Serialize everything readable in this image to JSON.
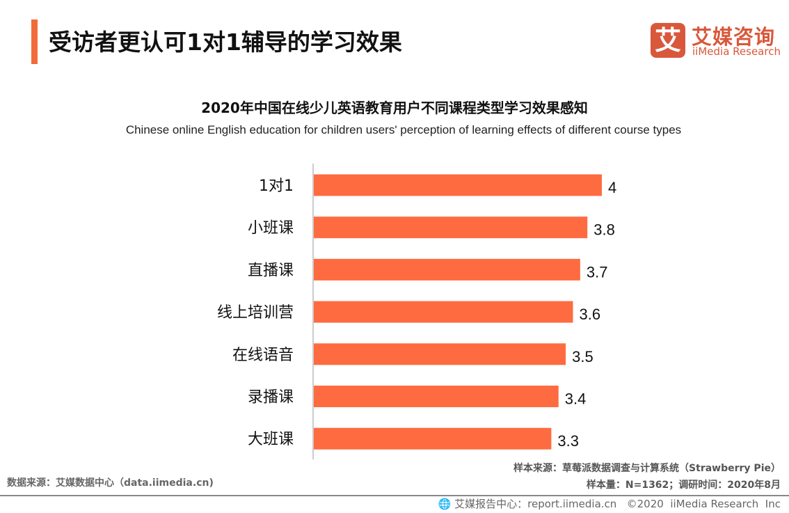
{
  "header": {
    "title": "受访者更认可1对1辅导的学习效果"
  },
  "logo": {
    "mark": "艾",
    "name_cn": "艾媒咨询",
    "name_en": "iiMedia Research"
  },
  "chart_data": {
    "type": "bar",
    "orientation": "horizontal",
    "title": "2020年中国在线少儿英语教育用户不同课程类型学习效果感知",
    "subtitle": "Chinese online English education for children users' perception of learning effects of different course types",
    "categories": [
      "1对1",
      "小班课",
      "直播课",
      "线上培训营",
      "在线语音",
      "录播课",
      "大班课"
    ],
    "values": [
      4,
      3.8,
      3.7,
      3.6,
      3.5,
      3.4,
      3.3
    ],
    "value_labels": [
      "4",
      "3.8",
      "3.7",
      "3.6",
      "3.5",
      "3.4",
      "3.3"
    ],
    "xlim": [
      0,
      4
    ],
    "grid": false,
    "bar_color": "#ff6b40",
    "axis_color": "#bbbbbb"
  },
  "footer": {
    "data_source": "数据来源：艾媒数据中心（data.iimedia.cn)",
    "sample_source": "样本来源：草莓派数据调查与计算系统（Strawberry Pie）",
    "sample_size": "样本量：N=1362；调研时间：2020年8月",
    "report_center": "艾媒报告中心：report.iimedia.cn   ©2020  iiMedia Research  Inc",
    "globe_icon": "globe-icon"
  }
}
